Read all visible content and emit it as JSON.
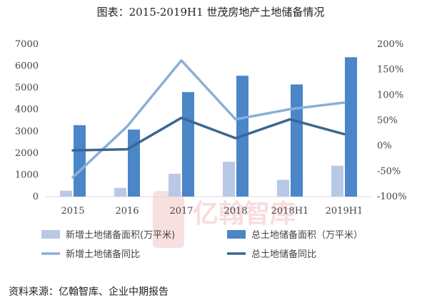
{
  "chart_data": {
    "type": "bar",
    "title": "图表：2015-2019H1 世茂房地产土地储备情况",
    "categories": [
      "2015",
      "2016",
      "2017",
      "2018",
      "2018H1",
      "2019H1"
    ],
    "y_left": {
      "lim": [
        0,
        7000
      ],
      "ticks": [
        "0",
        "1000",
        "2000",
        "3000",
        "4000",
        "5000",
        "6000",
        "7000"
      ],
      "tick_values": [
        0,
        1000,
        2000,
        3000,
        4000,
        5000,
        6000,
        7000
      ]
    },
    "y_right": {
      "lim": [
        -100,
        200
      ],
      "ticks": [
        "-100%",
        "-50%",
        "0%",
        "50%",
        "100%",
        "150%",
        "200%"
      ],
      "tick_values": [
        -100,
        -50,
        0,
        50,
        100,
        150,
        200
      ]
    },
    "series": [
      {
        "name": "新增土地储备面积(万平米)",
        "kind": "bar",
        "axis": "left",
        "color": "#b8c9e6",
        "values": [
          270,
          400,
          1050,
          1600,
          770,
          1420
        ]
      },
      {
        "name": "总土地储备面积（万平米）",
        "kind": "bar",
        "axis": "left",
        "color": "#4a86c8",
        "values": [
          3280,
          3080,
          4800,
          5550,
          5150,
          6400
        ]
      },
      {
        "name": "新增土地储备同比",
        "kind": "line",
        "axis": "right",
        "color": "#8caed8",
        "values": [
          -62,
          38,
          168,
          52,
          72,
          85
        ]
      },
      {
        "name": "总土地储备同比",
        "kind": "line",
        "axis": "right",
        "color": "#3c6691",
        "values": [
          -9,
          -7,
          55,
          15,
          52,
          23
        ]
      }
    ],
    "grid": false,
    "legend_position": "bottom"
  },
  "watermark": {
    "text": "亿翰智库",
    "logo_glyph": "亿"
  },
  "source": "资料来源：亿翰智库、企业中期报告"
}
